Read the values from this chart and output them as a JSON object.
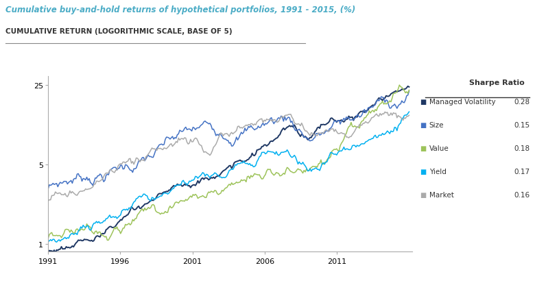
{
  "title_line1": "Cumulative buy-and-hold returns of hypothetical portfolios, 1991 - 2015, (%)",
  "title_line2": "CUMULATIVE RETURN (LOGORITHMIC SCALE, BASE OF 5)",
  "title1_color": "#4bacc6",
  "title2_color": "#333333",
  "background_color": "#ffffff",
  "series_colors": {
    "Managed Volatility": "#1f3864",
    "Size": "#4472c4",
    "Value": "#9dc35a",
    "Yield": "#00b0f0",
    "Market": "#aaaaaa"
  },
  "sharpe_ratios": {
    "Managed Volatility": "0.28",
    "Size": "0.15",
    "Value": "0.18",
    "Yield": "0.17",
    "Market": "0.16"
  },
  "legend_label": "Sharpe Ratio"
}
